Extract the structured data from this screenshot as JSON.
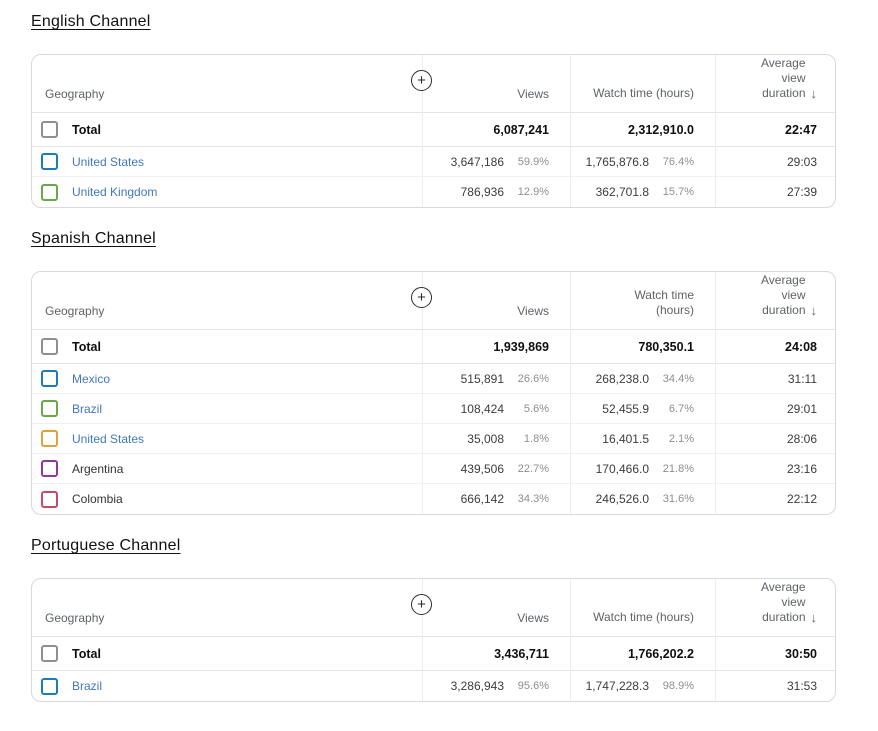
{
  "palette": {
    "link_blue": "#4277bd",
    "total_checkbox": "#8f8f8f",
    "series_blue": "#1f7bb8",
    "series_green": "#68a74c",
    "series_orange": "#e0a23c",
    "series_purple": "#90389f",
    "series_pink": "#c54a68"
  },
  "sections": [
    {
      "title": "English Channel",
      "table": {
        "columns": {
          "geography": "Geography",
          "views": "Views",
          "watch_time": "Watch time (hours)",
          "avg_duration": "Average\nview\nduration",
          "sort_icon": "↓",
          "add_button": "+"
        },
        "total": {
          "label": "Total",
          "views": "6,087,241",
          "watch_time": "2,312,910.0",
          "avg_duration": "22:47"
        },
        "rows": [
          {
            "name": "United States",
            "checkbox_color": "#1f7bb8",
            "is_link": true,
            "views": "3,647,186",
            "views_pct": "59.9%",
            "watch_time": "1,765,876.8",
            "watch_pct": "76.4%",
            "avg_duration": "29:03"
          },
          {
            "name": "United Kingdom",
            "checkbox_color": "#68a74c",
            "is_link": true,
            "views": "786,936",
            "views_pct": "12.9%",
            "watch_time": "362,701.8",
            "watch_pct": "15.7%",
            "avg_duration": "27:39"
          }
        ]
      }
    },
    {
      "title": "Spanish Channel",
      "table": {
        "columns": {
          "geography": "Geography",
          "views": "Views",
          "watch_time": "Watch time\n(hours)",
          "avg_duration": "Average\nview\nduration",
          "sort_icon": "↓",
          "add_button": "+"
        },
        "total": {
          "label": "Total",
          "views": "1,939,869",
          "watch_time": "780,350.1",
          "avg_duration": "24:08"
        },
        "rows": [
          {
            "name": "Mexico",
            "checkbox_color": "#1f7bb8",
            "is_link": true,
            "views": "515,891",
            "views_pct": "26.6%",
            "watch_time": "268,238.0",
            "watch_pct": "34.4%",
            "avg_duration": "31:11"
          },
          {
            "name": "Brazil",
            "checkbox_color": "#68a74c",
            "is_link": true,
            "views": "108,424",
            "views_pct": "5.6%",
            "watch_time": "52,455.9",
            "watch_pct": "6.7%",
            "avg_duration": "29:01"
          },
          {
            "name": "United States",
            "checkbox_color": "#e0a23c",
            "is_link": true,
            "views": "35,008",
            "views_pct": "1.8%",
            "watch_time": "16,401.5",
            "watch_pct": "2.1%",
            "avg_duration": "28:06"
          },
          {
            "name": "Argentina",
            "checkbox_color": "#90389f",
            "is_link": false,
            "views": "439,506",
            "views_pct": "22.7%",
            "watch_time": "170,466.0",
            "watch_pct": "21.8%",
            "avg_duration": "23:16"
          },
          {
            "name": "Colombia",
            "checkbox_color": "#c54a68",
            "is_link": false,
            "views": "666,142",
            "views_pct": "34.3%",
            "watch_time": "246,526.0",
            "watch_pct": "31.6%",
            "avg_duration": "22:12"
          }
        ]
      }
    },
    {
      "title": "Portuguese Channel",
      "table": {
        "columns": {
          "geography": "Geography",
          "views": "Views",
          "watch_time": "Watch time (hours)",
          "avg_duration": "Average\nview\nduration",
          "sort_icon": "↓",
          "add_button": "+"
        },
        "total": {
          "label": "Total",
          "views": "3,436,711",
          "watch_time": "1,766,202.2",
          "avg_duration": "30:50"
        },
        "rows": [
          {
            "name": "Brazil",
            "checkbox_color": "#1f7bb8",
            "is_link": true,
            "views": "3,286,943",
            "views_pct": "95.6%",
            "watch_time": "1,747,228.3",
            "watch_pct": "98.9%",
            "avg_duration": "31:53"
          }
        ]
      }
    }
  ]
}
